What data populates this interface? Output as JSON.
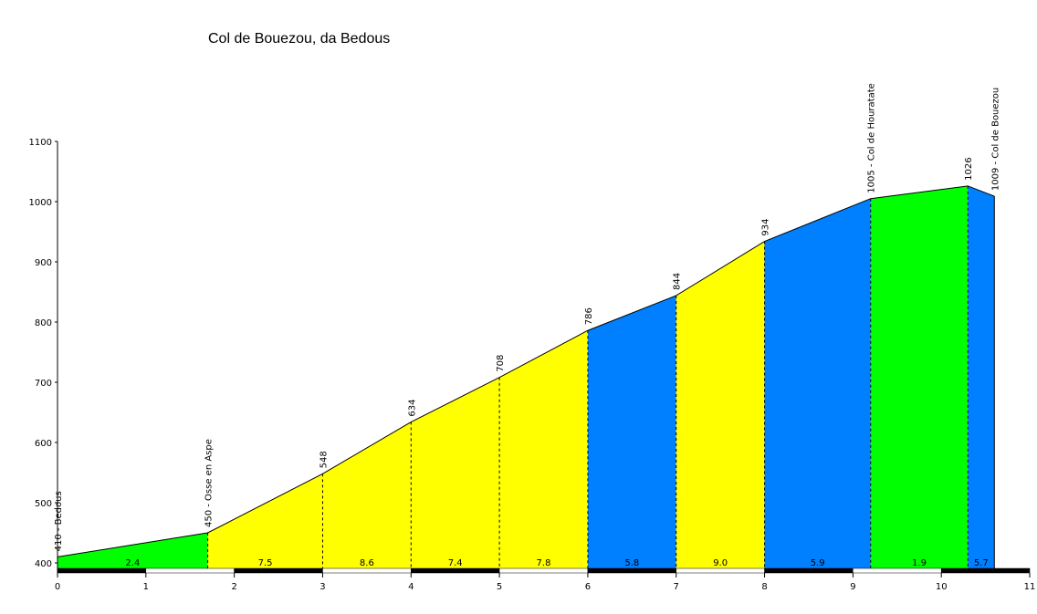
{
  "chart_data": {
    "type": "area",
    "title": "Col de Bouezou, da Bedous",
    "xlabel": "",
    "ylabel": "",
    "xlim": [
      0,
      11
    ],
    "ylim": [
      390,
      1100
    ],
    "x_ticks": [
      0,
      1,
      2,
      3,
      4,
      5,
      6,
      7,
      8,
      9,
      10,
      11
    ],
    "y_ticks": [
      400,
      500,
      600,
      700,
      800,
      900,
      1000,
      1100
    ],
    "points": [
      {
        "x": 0,
        "y": 410,
        "label": "410 - Bedous"
      },
      {
        "x": 1.7,
        "y": 450,
        "label": "450 - Osse en Aspe"
      },
      {
        "x": 3.0,
        "y": 548,
        "label": "548"
      },
      {
        "x": 4.0,
        "y": 634,
        "label": "634"
      },
      {
        "x": 5.0,
        "y": 708,
        "label": "708"
      },
      {
        "x": 6.0,
        "y": 786,
        "label": "786"
      },
      {
        "x": 7.0,
        "y": 844,
        "label": "844"
      },
      {
        "x": 8.0,
        "y": 934,
        "label": "934"
      },
      {
        "x": 9.2,
        "y": 1005,
        "label": "1005 - Col de Houratate"
      },
      {
        "x": 10.3,
        "y": 1026,
        "label": "1026"
      },
      {
        "x": 10.6,
        "y": 1009,
        "label": "1009 - Col de Bouezou"
      }
    ],
    "segments": [
      {
        "from": 0,
        "to": 1.7,
        "gradient": "2.4",
        "color": "#00ff00"
      },
      {
        "from": 1.7,
        "to": 3.0,
        "gradient": "7.5",
        "color": "#ffff00"
      },
      {
        "from": 3.0,
        "to": 4.0,
        "gradient": "8.6",
        "color": "#ffff00"
      },
      {
        "from": 4.0,
        "to": 5.0,
        "gradient": "7.4",
        "color": "#ffff00"
      },
      {
        "from": 5.0,
        "to": 6.0,
        "gradient": "7.8",
        "color": "#ffff00"
      },
      {
        "from": 6.0,
        "to": 7.0,
        "gradient": "5.8",
        "color": "#0080ff"
      },
      {
        "from": 7.0,
        "to": 8.0,
        "gradient": "9.0",
        "color": "#ffff00"
      },
      {
        "from": 8.0,
        "to": 9.2,
        "gradient": "5.9",
        "color": "#0080ff"
      },
      {
        "from": 9.2,
        "to": 10.3,
        "gradient": "1.9",
        "color": "#00ff00"
      },
      {
        "from": 10.3,
        "to": 10.6,
        "gradient": "5.7",
        "color": "#0080ff"
      }
    ],
    "grid": false,
    "legend": "none"
  }
}
